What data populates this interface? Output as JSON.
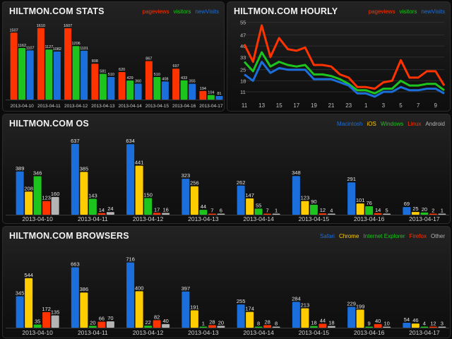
{
  "colors": {
    "red": "#ff3300",
    "green": "#1ec41e",
    "blue": "#1a6fdc",
    "yellow": "#ffcc00",
    "gray": "#b4b4b4"
  },
  "panels": {
    "stats": {
      "title": "HILTMON.COM STATS",
      "legend": [
        "pageviews",
        "visitors",
        "newVisits"
      ]
    },
    "hourly": {
      "title": "HILTMON.COM HOURLY",
      "legend": [
        "pageviews",
        "visitors",
        "newVisits"
      ]
    },
    "os": {
      "title": "HILTMON.COM OS",
      "legend": [
        "Macintosh",
        "iOS",
        "Windows",
        "Linux",
        "Android"
      ]
    },
    "browsers": {
      "title": "HILTMON.COM BROWSERS",
      "legend": [
        "Safari",
        "Chrome",
        "Internet Explorer",
        "Firefox",
        "Other"
      ]
    }
  },
  "chart_data": [
    {
      "id": "stats",
      "type": "bar",
      "title": "HILTMON.COM STATS",
      "categories": [
        "2013-04-10",
        "2013-04-11",
        "2013-04-12",
        "2013-04-13",
        "2013-04-14",
        "2013-04-15",
        "2013-04-16",
        "2013-04-17"
      ],
      "series": [
        {
          "name": "pageviews",
          "color": "red",
          "values": [
            1507,
            1610,
            1607,
            808,
            620,
            867,
            697,
            194
          ]
        },
        {
          "name": "visitors",
          "color": "green",
          "values": [
            1162,
            1127,
            1206,
            581,
            429,
            510,
            433,
            104
          ]
        },
        {
          "name": "newVisits",
          "color": "blue",
          "values": [
            1107,
            1082,
            1101,
            510,
            360,
            408,
            355,
            81
          ]
        }
      ],
      "ylim": [
        0,
        1750
      ]
    },
    {
      "id": "hourly",
      "type": "line",
      "title": "HILTMON.COM HOURLY",
      "x": [
        11,
        12,
        13,
        14,
        15,
        16,
        17,
        18,
        19,
        20,
        21,
        22,
        23,
        0,
        1,
        2,
        3,
        4,
        5,
        6,
        7,
        8,
        9,
        10
      ],
      "xticks": [
        "11",
        "13",
        "15",
        "17",
        "19",
        "21",
        "23",
        "1",
        "3",
        "5",
        "7",
        "9"
      ],
      "yticks": [
        11,
        18,
        25,
        33,
        40,
        47,
        55
      ],
      "ylim": [
        7,
        57
      ],
      "series": [
        {
          "name": "pageviews",
          "color": "red",
          "values": [
            41,
            30,
            53,
            33,
            45,
            38,
            37,
            39,
            28,
            28,
            27,
            22,
            20,
            14,
            14,
            13,
            17,
            18,
            31,
            20,
            20,
            24,
            24,
            15
          ]
        },
        {
          "name": "visitors",
          "color": "green",
          "values": [
            30,
            24,
            36,
            27,
            30,
            28,
            27,
            28,
            22,
            22,
            21,
            19,
            16,
            12,
            12,
            10,
            13,
            13,
            18,
            15,
            15,
            16,
            16,
            12
          ]
        },
        {
          "name": "newVisits",
          "color": "blue",
          "values": [
            22,
            18,
            30,
            23,
            26,
            25,
            25,
            25,
            19,
            19,
            19,
            17,
            15,
            10,
            10,
            8,
            11,
            11,
            14,
            12,
            12,
            13,
            13,
            10
          ]
        }
      ]
    },
    {
      "id": "os",
      "type": "bar",
      "title": "HILTMON.COM OS",
      "categories": [
        "2013-04-10",
        "2013-04-11",
        "2013-04-12",
        "2013-04-13",
        "2013-04-14",
        "2013-04-15",
        "2013-04-16",
        "2013-04-17"
      ],
      "series": [
        {
          "name": "Macintosh",
          "color": "blue",
          "values": [
            389,
            637,
            634,
            323,
            262,
            348,
            291,
            69
          ]
        },
        {
          "name": "iOS",
          "color": "yellow",
          "values": [
            208,
            385,
            441,
            256,
            147,
            123,
            101,
            25
          ]
        },
        {
          "name": "Windows",
          "color": "green",
          "values": [
            346,
            143,
            150,
            44,
            55,
            90,
            76,
            20
          ]
        },
        {
          "name": "Linux",
          "color": "red",
          "values": [
            123,
            14,
            17,
            7,
            7,
            12,
            14,
            2
          ]
        },
        {
          "name": "Android",
          "color": "gray",
          "values": [
            160,
            24,
            16,
            6,
            1,
            4,
            5,
            1
          ]
        }
      ],
      "ylim": [
        0,
        680
      ]
    },
    {
      "id": "browsers",
      "type": "bar",
      "title": "HILTMON.COM BROWSERS",
      "categories": [
        "2013-04-10",
        "2013-04-11",
        "2013-04-12",
        "2013-04-13",
        "2013-04-14",
        "2013-04-15",
        "2013-04-16",
        "2013-04-17"
      ],
      "series": [
        {
          "name": "Safari",
          "color": "blue",
          "values": [
            345,
            663,
            716,
            397,
            255,
            284,
            229,
            54
          ]
        },
        {
          "name": "Chrome",
          "color": "yellow",
          "values": [
            544,
            386,
            400,
            191,
            174,
            213,
            199,
            46
          ]
        },
        {
          "name": "Internet Explorer",
          "color": "green",
          "values": [
            35,
            20,
            22,
            1,
            8,
            18,
            9,
            4
          ]
        },
        {
          "name": "Firefox",
          "color": "red",
          "values": [
            172,
            66,
            82,
            28,
            28,
            44,
            40,
            12
          ]
        },
        {
          "name": "Other",
          "color": "gray",
          "values": [
            135,
            70,
            40,
            20,
            8,
            18,
            10,
            3
          ]
        }
      ],
      "ylim": [
        0,
        760
      ]
    }
  ]
}
